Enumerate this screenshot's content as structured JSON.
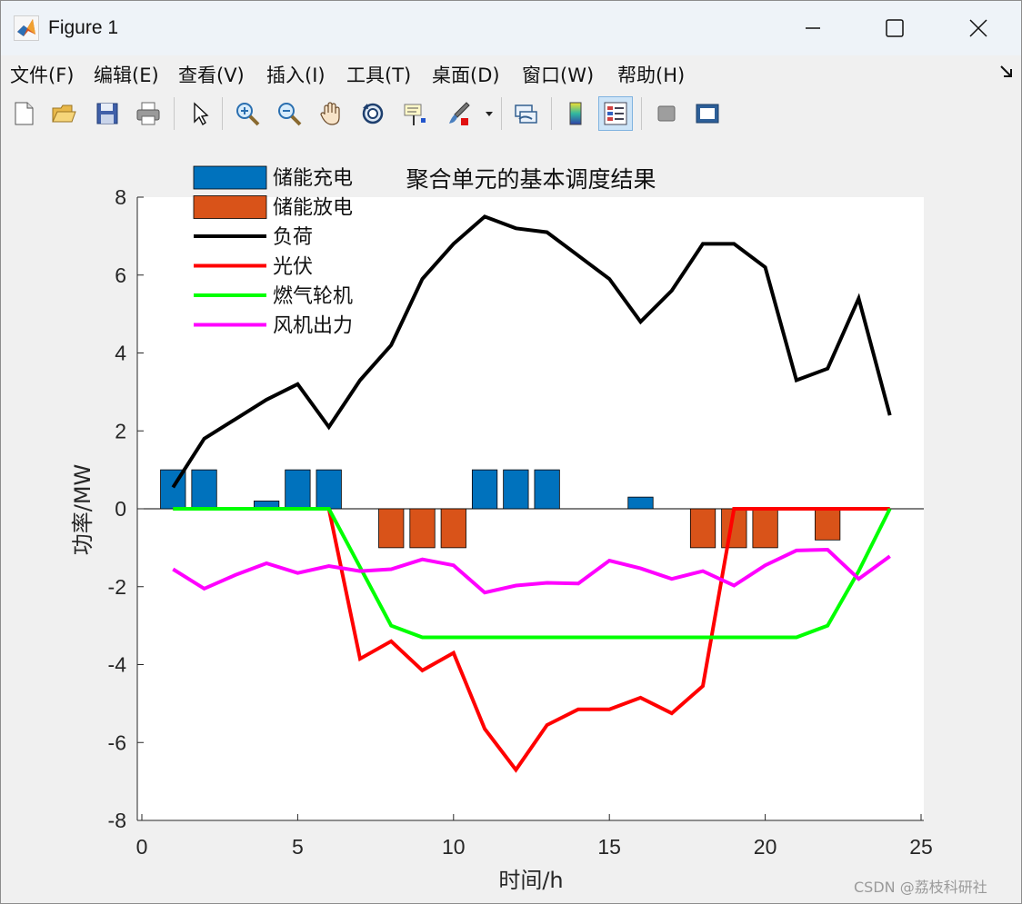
{
  "window": {
    "title": "Figure 1",
    "controls": {
      "minimize": "minimize",
      "maximize": "maximize",
      "close": "close"
    }
  },
  "menu": {
    "items": [
      {
        "label": "文件(F)",
        "name": "menu-file"
      },
      {
        "label": "编辑(E)",
        "name": "menu-edit"
      },
      {
        "label": "查看(V)",
        "name": "menu-view"
      },
      {
        "label": "插入(I)",
        "name": "menu-insert"
      },
      {
        "label": "工具(T)",
        "name": "menu-tools"
      },
      {
        "label": "桌面(D)",
        "name": "menu-desktop"
      },
      {
        "label": "窗口(W)",
        "name": "menu-window"
      },
      {
        "label": "帮助(H)",
        "name": "menu-help"
      }
    ]
  },
  "toolbar": {
    "icons": [
      "new-figure-icon",
      "open-file-icon",
      "save-icon",
      "print-icon",
      "pointer-icon",
      "zoom-in-icon",
      "zoom-out-icon",
      "pan-hand-icon",
      "rotate-3d-icon",
      "data-cursor-icon",
      "brush-icon",
      "link-plot-icon",
      "colorbar-icon",
      "legend-icon",
      "hide-plot-tools-icon",
      "show-plot-tools-icon"
    ],
    "active": "legend-icon"
  },
  "watermark": "CSDN @荔枝科研社",
  "chart_data": {
    "type": "bar+line",
    "title": "聚合单元的基本调度结果",
    "xlabel": "时间/h",
    "ylabel": "功率/MW",
    "xlim": [
      0,
      25
    ],
    "ylim": [
      -8,
      8
    ],
    "xticks": [
      0,
      5,
      10,
      15,
      20,
      25
    ],
    "yticks": [
      -8,
      -6,
      -4,
      -2,
      0,
      2,
      4,
      6,
      8
    ],
    "grid": false,
    "legend_position": "top-left",
    "x": [
      1,
      2,
      3,
      4,
      5,
      6,
      7,
      8,
      9,
      10,
      11,
      12,
      13,
      14,
      15,
      16,
      17,
      18,
      19,
      20,
      21,
      22,
      23,
      24
    ],
    "bar_series": [
      {
        "name": "储能充电",
        "color": "#0072bd",
        "values": [
          1,
          1,
          0,
          0.2,
          1,
          1,
          0,
          0,
          0,
          0,
          1,
          1,
          1,
          0,
          0,
          0.3,
          0,
          0,
          0,
          0,
          0,
          0,
          0,
          0
        ]
      },
      {
        "name": "储能放电",
        "color": "#d95319",
        "values": [
          0,
          0,
          0,
          0,
          0,
          0,
          0,
          -1,
          -1,
          -1,
          0,
          0,
          0,
          0,
          0,
          0,
          0,
          -1,
          -1,
          -1,
          0,
          -0.8,
          0,
          0
        ]
      }
    ],
    "line_series": [
      {
        "name": "负荷",
        "color": "#000000",
        "values": [
          0.55,
          1.8,
          2.3,
          2.8,
          3.2,
          2.1,
          3.3,
          4.2,
          5.9,
          6.8,
          7.5,
          7.2,
          7.1,
          6.5,
          5.9,
          4.8,
          5.6,
          6.8,
          6.8,
          6.2,
          3.3,
          3.6,
          5.4,
          2.4
        ]
      },
      {
        "name": "光伏",
        "color": "#ff0000",
        "values": [
          0,
          0,
          0,
          0,
          0,
          0,
          -3.85,
          -3.4,
          -4.15,
          -3.7,
          -5.65,
          -6.7,
          -5.55,
          -5.15,
          -5.15,
          -4.85,
          -5.25,
          -4.55,
          0,
          0,
          0,
          0,
          0,
          0
        ]
      },
      {
        "name": "燃气轮机",
        "color": "#00ff00",
        "values": [
          0,
          0,
          0,
          0,
          0,
          0,
          -1.5,
          -3.0,
          -3.3,
          -3.3,
          -3.3,
          -3.3,
          -3.3,
          -3.3,
          -3.3,
          -3.3,
          -3.3,
          -3.3,
          -3.3,
          -3.3,
          -3.3,
          -3.0,
          -1.6,
          0
        ]
      },
      {
        "name": "风机出力",
        "color": "#ff00ff",
        "values": [
          -1.55,
          -2.05,
          -1.7,
          -1.4,
          -1.65,
          -1.47,
          -1.6,
          -1.55,
          -1.3,
          -1.45,
          -2.15,
          -1.97,
          -1.9,
          -1.92,
          -1.33,
          -1.53,
          -1.8,
          -1.6,
          -1.97,
          -1.45,
          -1.07,
          -1.05,
          -1.8,
          -1.22
        ]
      }
    ]
  }
}
